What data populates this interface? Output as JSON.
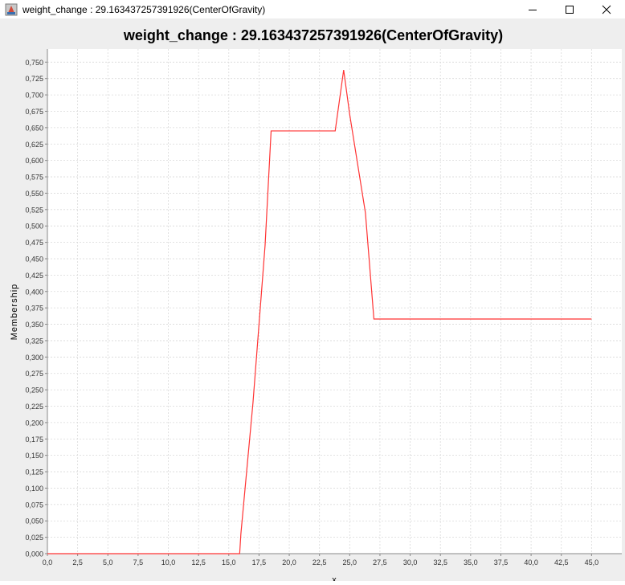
{
  "window": {
    "title": "weight_change : 29.163437257391926(CenterOfGravity)"
  },
  "colors": {
    "series": "#ff3333",
    "plot_bg": "#ffffff",
    "panel_bg": "#eeeeee",
    "grid": "#d9d9d9"
  },
  "icons": {
    "app": "java-app-icon",
    "minimize": "minimize-icon",
    "maximize": "maximize-icon",
    "close": "close-icon"
  },
  "chart_data": {
    "type": "line",
    "title": "weight_change : 29.163437257391926(CenterOfGravity)",
    "xlabel": "x",
    "ylabel": "Membership",
    "xlim": [
      0,
      47.5
    ],
    "ylim": [
      0,
      0.77
    ],
    "grid": true,
    "legend": "none",
    "x_ticks": [
      "0,0",
      "2,5",
      "5,0",
      "7,5",
      "10,0",
      "12,5",
      "15,0",
      "17,5",
      "20,0",
      "22,5",
      "25,0",
      "27,5",
      "30,0",
      "32,5",
      "35,0",
      "37,5",
      "40,0",
      "42,5",
      "45,0"
    ],
    "y_ticks": [
      "0,000",
      "0,025",
      "0,050",
      "0,075",
      "0,100",
      "0,125",
      "0,150",
      "0,175",
      "0,200",
      "0,225",
      "0,250",
      "0,275",
      "0,300",
      "0,325",
      "0,350",
      "0,375",
      "0,400",
      "0,425",
      "0,450",
      "0,475",
      "0,500",
      "0,525",
      "0,550",
      "0,575",
      "0,600",
      "0,625",
      "0,650",
      "0,675",
      "0,700",
      "0,725",
      "0,750"
    ],
    "series": [
      {
        "x": [
          0,
          15.9,
          16.0,
          17.0,
          18.0,
          18.5,
          23.8,
          24.5,
          25.0,
          26.3,
          27.0,
          45.0
        ],
        "y": [
          0,
          0,
          0.03,
          0.23,
          0.47,
          0.645,
          0.645,
          0.738,
          0.67,
          0.52,
          0.358,
          0.358
        ]
      }
    ]
  }
}
